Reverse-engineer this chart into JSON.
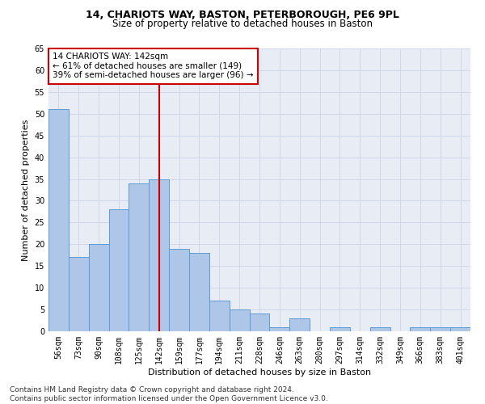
{
  "title": "14, CHARIOTS WAY, BASTON, PETERBOROUGH, PE6 9PL",
  "subtitle": "Size of property relative to detached houses in Baston",
  "xlabel": "Distribution of detached houses by size in Baston",
  "ylabel": "Number of detached properties",
  "bar_labels": [
    "56sqm",
    "73sqm",
    "90sqm",
    "108sqm",
    "125sqm",
    "142sqm",
    "159sqm",
    "177sqm",
    "194sqm",
    "211sqm",
    "228sqm",
    "246sqm",
    "263sqm",
    "280sqm",
    "297sqm",
    "314sqm",
    "332sqm",
    "349sqm",
    "366sqm",
    "383sqm",
    "401sqm"
  ],
  "bar_values": [
    51,
    17,
    20,
    28,
    34,
    35,
    19,
    18,
    7,
    5,
    4,
    1,
    3,
    0,
    1,
    0,
    1,
    0,
    1,
    1,
    1
  ],
  "bar_color": "#aec6e8",
  "bar_edge_color": "#5b9bd5",
  "vline_x": 5,
  "vline_color": "#cc0000",
  "annotation_text": "14 CHARIOTS WAY: 142sqm\n← 61% of detached houses are smaller (149)\n39% of semi-detached houses are larger (96) →",
  "annotation_box_color": "#ffffff",
  "annotation_box_edge_color": "#cc0000",
  "ylim": [
    0,
    65
  ],
  "yticks": [
    0,
    5,
    10,
    15,
    20,
    25,
    30,
    35,
    40,
    45,
    50,
    55,
    60,
    65
  ],
  "grid_color": "#d0d8e8",
  "bg_color": "#e8edf5",
  "footer": "Contains HM Land Registry data © Crown copyright and database right 2024.\nContains public sector information licensed under the Open Government Licence v3.0.",
  "title_fontsize": 9,
  "subtitle_fontsize": 8.5,
  "xlabel_fontsize": 8,
  "ylabel_fontsize": 8,
  "tick_fontsize": 7,
  "annotation_fontsize": 7.5,
  "footer_fontsize": 6.5
}
